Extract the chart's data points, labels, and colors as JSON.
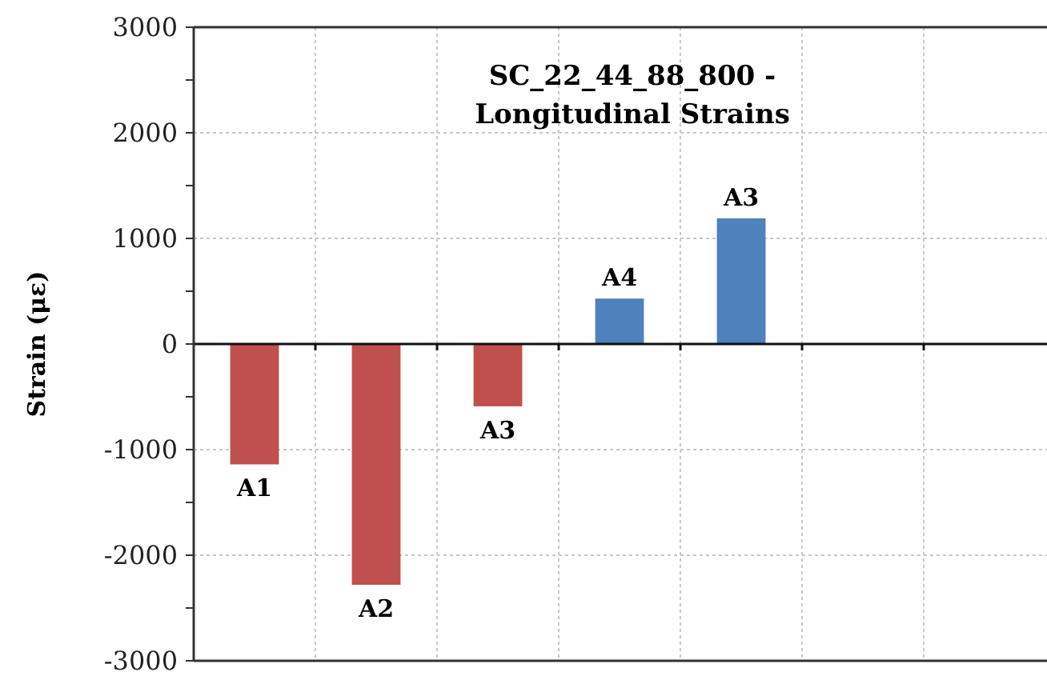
{
  "chart_data": {
    "type": "bar",
    "title": "SC_22_44_88_800 -\nLongitudinal Strains",
    "ylabel": "Strain (με)",
    "categories": [
      "A1",
      "A2",
      "A3",
      "A4",
      "A3",
      null,
      null
    ],
    "values": [
      -1140,
      -2280,
      -590,
      430,
      1190,
      null,
      null
    ],
    "colors": [
      "#c0504d",
      "#c0504d",
      "#c0504d",
      "#4f81bd",
      "#4f81bd",
      null,
      null
    ],
    "ylim": [
      -3000,
      3000
    ],
    "yticks": [
      -3000,
      {
        "value": -2500,
        "label": null
      },
      -2000,
      {
        "value": -1500,
        "label": null
      },
      -1000,
      {
        "value": -500,
        "label": null
      },
      0,
      {
        "value": 500,
        "label": null
      },
      1000,
      {
        "value": 1500,
        "label": null
      },
      2000,
      {
        "value": 2500,
        "label": null
      },
      3000
    ],
    "grid": true
  }
}
